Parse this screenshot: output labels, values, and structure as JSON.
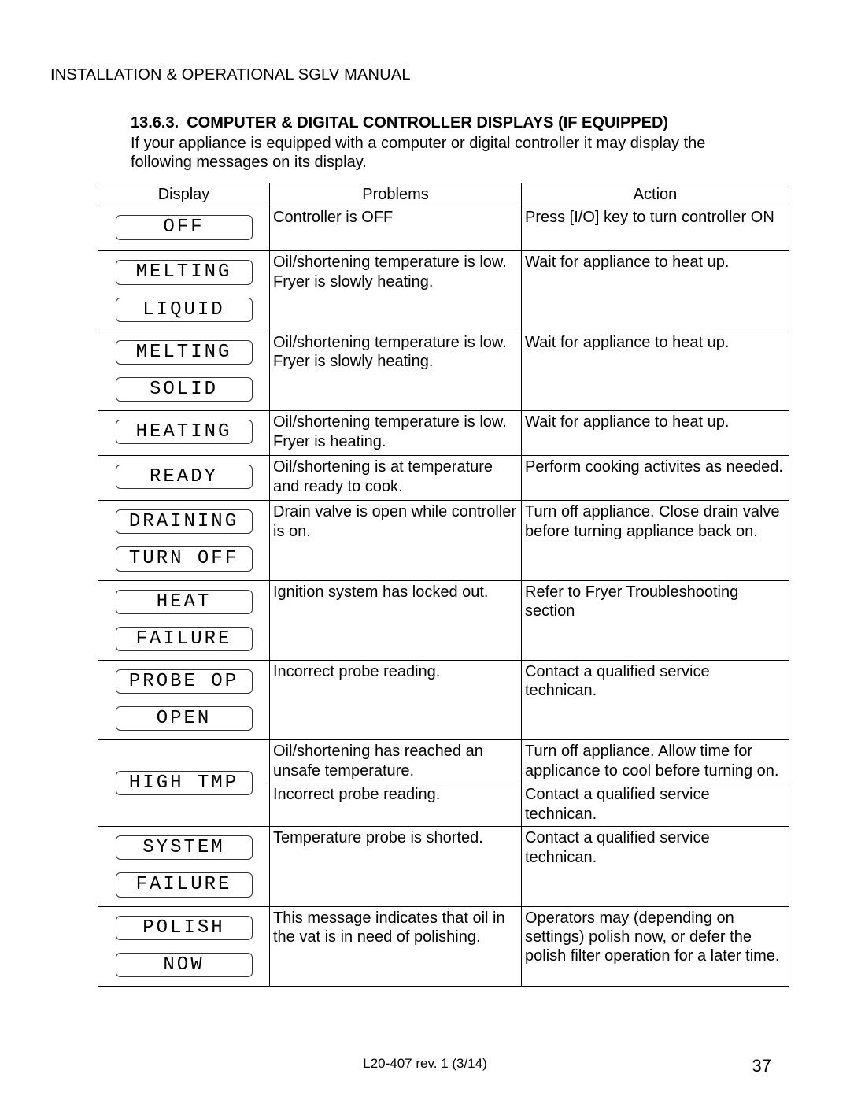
{
  "header": "INSTALLATION & OPERATIONAL SGLV MANUAL",
  "section": {
    "number": "13.6.3.",
    "title": "COMPUTER & DIGITAL CONTROLLER DISPLAYS (IF EQUIPPED)",
    "intro": "If your appliance is equipped with a computer or digital controller it may display the following messages on its display."
  },
  "columns": {
    "display": "Display",
    "problems": "Problems",
    "action": "Action"
  },
  "rows": [
    {
      "lcd": [
        "OFF"
      ],
      "cells": [
        {
          "problem": "Controller is OFF",
          "action": "Press [I/O] key to turn controller ON"
        }
      ]
    },
    {
      "lcd": [
        "MELTING",
        "LIQUID"
      ],
      "cells": [
        {
          "problem": "Oil/shortening temperature is low.  Fryer is slowly heating.",
          "action": "Wait for appliance to heat up."
        }
      ]
    },
    {
      "lcd": [
        "MELTING",
        "SOLID"
      ],
      "cells": [
        {
          "problem": "Oil/shortening temperature is low.  Fryer is slowly heating.",
          "action": "Wait for appliance to heat up."
        }
      ]
    },
    {
      "lcd": [
        "HEATING"
      ],
      "cells": [
        {
          "problem": "Oil/shortening temperature is low.  Fryer is heating.",
          "action": "Wait for appliance to heat up."
        }
      ]
    },
    {
      "lcd": [
        "READY"
      ],
      "cells": [
        {
          "problem": "Oil/shortening is at temperature and ready to cook.",
          "action": "Perform cooking activites as needed."
        }
      ]
    },
    {
      "lcd": [
        "DRAINING",
        "TURN OFF"
      ],
      "cells": [
        {
          "problem": "Drain valve is open while controller is on.",
          "action": "Turn off appliance.  Close drain valve before turning appliance back on."
        }
      ]
    },
    {
      "lcd": [
        "HEAT",
        "FAILURE"
      ],
      "cells": [
        {
          "problem": "Ignition system has locked out.",
          "action": "Refer to Fryer Troubleshooting section"
        }
      ]
    },
    {
      "lcd": [
        "PROBE OP",
        "OPEN"
      ],
      "cells": [
        {
          "problem": "Incorrect probe reading.",
          "action": "Contact a qualified service technican."
        }
      ]
    },
    {
      "lcd": [
        "HIGH TMP"
      ],
      "centerV": true,
      "cells": [
        {
          "problem": "Oil/shortening has reached an unsafe temperature.",
          "action": "Turn off appliance.  Allow time for applicance to cool before turning on."
        },
        {
          "problem": "Incorrect probe reading.",
          "action": "Contact a qualified service technican."
        }
      ]
    },
    {
      "lcd": [
        "SYSTEM",
        "FAILURE"
      ],
      "cells": [
        {
          "problem": "Temperature probe is shorted.",
          "action": "Contact a qualified service technican."
        }
      ]
    },
    {
      "lcd": [
        "POLISH",
        "NOW"
      ],
      "cells": [
        {
          "problem": "This message indicates that oil in the vat is in need of polishing.",
          "action": "Operators may (depending on settings) polish now, or defer the polish filter operation for a later time."
        }
      ]
    }
  ],
  "footer": "L20-407 rev. 1 (3/14)",
  "page_number": "37"
}
